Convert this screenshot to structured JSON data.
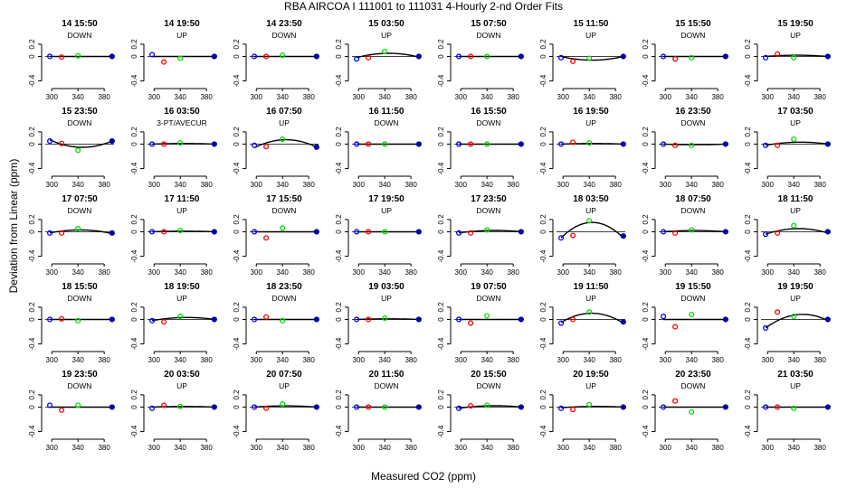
{
  "title": "RBA   AIRCOA I   111001 to 111031   4-Hourly 2-nd Order Fits",
  "xlabel": "Measured CO2 (ppm)",
  "ylabel": "Deviation from Linear (ppm)",
  "colors": {
    "p1": "#0000ff",
    "p2": "#ff0000",
    "p3": "#00dd00",
    "p4": "#0000aa",
    "curve": "#000000",
    "axis": "#000000"
  },
  "chart_data": {
    "type": "scatter",
    "axes": {
      "xlim": [
        290,
        395
      ],
      "ylim": [
        -0.48,
        0.42
      ],
      "xticks": [
        300,
        340,
        380
      ],
      "xtick_labels": [
        "300",
        "340",
        "380"
      ],
      "yticks": [
        -0.4,
        0,
        0.2
      ],
      "ytick_labels": [
        "-0.4",
        "0",
        "0.2"
      ],
      "x_tick_label_rows": [
        0,
        1,
        2,
        3,
        4
      ]
    },
    "standard_x": [
      297,
      315,
      340,
      392
    ],
    "panels": [
      {
        "time": "14 15:50",
        "label": "DOWN",
        "y": [
          0.0,
          -0.01,
          0.01,
          0.0
        ],
        "curve": [
          0.0,
          0.0,
          0.0
        ]
      },
      {
        "time": "14 19:50",
        "label": "UP",
        "y": [
          0.03,
          -0.09,
          -0.03,
          0.0
        ],
        "curve": [
          0.0,
          0.0,
          0.0
        ]
      },
      {
        "time": "14 23:50",
        "label": "DOWN",
        "y": [
          0.0,
          0.0,
          0.02,
          0.0
        ],
        "curve": [
          0.0,
          0.0,
          0.0
        ]
      },
      {
        "time": "15 03:50",
        "label": "UP",
        "y": [
          -0.04,
          -0.02,
          0.08,
          0.0
        ],
        "curve": [
          -0.02,
          0.05,
          -0.01
        ]
      },
      {
        "time": "15 07:50",
        "label": "DOWN",
        "y": [
          0.0,
          0.0,
          0.0,
          0.0
        ],
        "curve": [
          0.0,
          0.0,
          0.0
        ]
      },
      {
        "time": "15 11:50",
        "label": "UP",
        "y": [
          -0.02,
          -0.08,
          -0.03,
          0.0
        ],
        "curve": [
          0.0,
          -0.06,
          0.0
        ]
      },
      {
        "time": "15 15:50",
        "label": "DOWN",
        "y": [
          0.0,
          -0.04,
          -0.02,
          0.0
        ],
        "curve": [
          0.0,
          0.0,
          0.0
        ]
      },
      {
        "time": "15 19:50",
        "label": "UP",
        "y": [
          -0.02,
          0.04,
          -0.02,
          0.0
        ],
        "curve": [
          0.0,
          0.02,
          0.0
        ]
      },
      {
        "time": "15 23:50",
        "label": "DOWN",
        "y": [
          0.05,
          0.01,
          -0.1,
          0.05
        ],
        "curve": [
          0.07,
          -0.05,
          0.05
        ]
      },
      {
        "time": "16 03:50",
        "label": "3-PT/AVECUR",
        "y": [
          0.0,
          0.0,
          0.02,
          0.0
        ],
        "curve": [
          0.0,
          0.01,
          0.0
        ]
      },
      {
        "time": "16 07:50",
        "label": "UP",
        "y": [
          -0.02,
          -0.04,
          0.08,
          -0.05
        ],
        "curve": [
          -0.06,
          0.07,
          -0.05
        ]
      },
      {
        "time": "16 11:50",
        "label": "DOWN",
        "y": [
          0.0,
          0.0,
          0.0,
          0.0
        ],
        "curve": [
          0.0,
          0.0,
          0.0
        ]
      },
      {
        "time": "16 15:50",
        "label": "DOWN",
        "y": [
          0.0,
          0.0,
          0.0,
          0.0
        ],
        "curve": [
          0.0,
          0.0,
          0.0
        ]
      },
      {
        "time": "16 19:50",
        "label": "UP",
        "y": [
          0.0,
          0.03,
          0.02,
          0.0
        ],
        "curve": [
          0.0,
          0.01,
          0.0
        ]
      },
      {
        "time": "16 23:50",
        "label": "DOWN",
        "y": [
          0.0,
          -0.02,
          -0.02,
          0.0
        ],
        "curve": [
          0.0,
          -0.01,
          0.0
        ]
      },
      {
        "time": "17 03:50",
        "label": "UP",
        "y": [
          -0.02,
          -0.02,
          0.08,
          0.0
        ],
        "curve": [
          -0.02,
          0.03,
          0.0
        ]
      },
      {
        "time": "17 07:50",
        "label": "DOWN",
        "y": [
          -0.02,
          -0.02,
          0.05,
          -0.02
        ],
        "curve": [
          -0.02,
          0.03,
          -0.03
        ]
      },
      {
        "time": "17 11:50",
        "label": "UP",
        "y": [
          0.0,
          0.0,
          0.02,
          0.0
        ],
        "curve": [
          0.0,
          0.01,
          0.0
        ]
      },
      {
        "time": "17 15:50",
        "label": "DOWN",
        "y": [
          0.0,
          -0.1,
          0.06,
          0.0
        ],
        "curve": [
          0.0,
          0.0,
          0.0
        ]
      },
      {
        "time": "17 19:50",
        "label": "UP",
        "y": [
          0.0,
          0.0,
          0.0,
          0.0
        ],
        "curve": [
          0.0,
          0.0,
          0.0
        ]
      },
      {
        "time": "17 23:50",
        "label": "DOWN",
        "y": [
          -0.02,
          -0.02,
          0.03,
          0.0
        ],
        "curve": [
          -0.02,
          0.02,
          0.0
        ]
      },
      {
        "time": "18 03:50",
        "label": "UP",
        "y": [
          -0.1,
          -0.06,
          0.18,
          -0.07
        ],
        "curve": [
          -0.1,
          0.15,
          -0.1
        ]
      },
      {
        "time": "18 07:50",
        "label": "DOWN",
        "y": [
          0.0,
          -0.02,
          0.03,
          0.0
        ],
        "curve": [
          0.0,
          0.02,
          0.0
        ]
      },
      {
        "time": "18 11:50",
        "label": "UP",
        "y": [
          -0.04,
          -0.02,
          0.1,
          0.0
        ],
        "curve": [
          -0.04,
          0.05,
          -0.02
        ]
      },
      {
        "time": "18 15:50",
        "label": "DOWN",
        "y": [
          0.0,
          0.01,
          -0.02,
          0.0
        ],
        "curve": [
          0.0,
          0.0,
          0.0
        ]
      },
      {
        "time": "18 19:50",
        "label": "UP",
        "y": [
          -0.02,
          -0.04,
          0.05,
          0.0
        ],
        "curve": [
          -0.02,
          0.03,
          0.0
        ]
      },
      {
        "time": "18 23:50",
        "label": "DOWN",
        "y": [
          0.0,
          0.04,
          -0.02,
          0.0
        ],
        "curve": [
          0.0,
          0.0,
          0.0
        ]
      },
      {
        "time": "19 03:50",
        "label": "UP",
        "y": [
          0.0,
          0.0,
          0.02,
          0.0
        ],
        "curve": [
          0.0,
          0.01,
          0.0
        ]
      },
      {
        "time": "19 07:50",
        "label": "DOWN",
        "y": [
          0.0,
          -0.06,
          0.06,
          0.0
        ],
        "curve": [
          0.0,
          0.0,
          0.0
        ]
      },
      {
        "time": "19 11:50",
        "label": "UP",
        "y": [
          -0.06,
          0.0,
          0.12,
          -0.04
        ],
        "curve": [
          -0.05,
          0.1,
          -0.06
        ]
      },
      {
        "time": "19 15:50",
        "label": "DOWN",
        "y": [
          0.05,
          -0.12,
          0.08,
          0.0
        ],
        "curve": [
          0.0,
          0.0,
          0.0
        ]
      },
      {
        "time": "19 19:50",
        "label": "UP",
        "y": [
          -0.14,
          0.12,
          0.05,
          0.0
        ],
        "curve": [
          -0.14,
          0.07,
          -0.02
        ]
      },
      {
        "time": "19 23:50",
        "label": "DOWN",
        "y": [
          0.03,
          -0.05,
          0.03,
          0.0
        ],
        "curve": [
          0.0,
          0.0,
          0.0
        ]
      },
      {
        "time": "20 03:50",
        "label": "UP",
        "y": [
          -0.02,
          0.03,
          0.01,
          0.0
        ],
        "curve": [
          0.0,
          0.01,
          0.0
        ]
      },
      {
        "time": "20 07:50",
        "label": "UP",
        "y": [
          0.0,
          -0.02,
          0.05,
          0.0
        ],
        "curve": [
          0.0,
          0.02,
          0.0
        ]
      },
      {
        "time": "20 11:50",
        "label": "DOWN",
        "y": [
          0.0,
          0.0,
          0.0,
          0.0
        ],
        "curve": [
          0.0,
          0.0,
          0.0
        ]
      },
      {
        "time": "20 15:50",
        "label": "DOWN",
        "y": [
          -0.02,
          0.02,
          0.03,
          0.0
        ],
        "curve": [
          -0.02,
          0.02,
          0.0
        ]
      },
      {
        "time": "20 19:50",
        "label": "UP",
        "y": [
          -0.02,
          -0.04,
          0.04,
          0.0
        ],
        "curve": [
          -0.01,
          0.01,
          0.0
        ]
      },
      {
        "time": "20 23:50",
        "label": "DOWN",
        "y": [
          0.0,
          0.1,
          -0.08,
          0.0
        ],
        "curve": [
          0.0,
          0.0,
          0.0
        ]
      },
      {
        "time": "21 03:50",
        "label": "UP",
        "y": [
          0.0,
          0.0,
          -0.02,
          0.0
        ],
        "curve": [
          0.0,
          0.0,
          0.0
        ]
      }
    ]
  }
}
